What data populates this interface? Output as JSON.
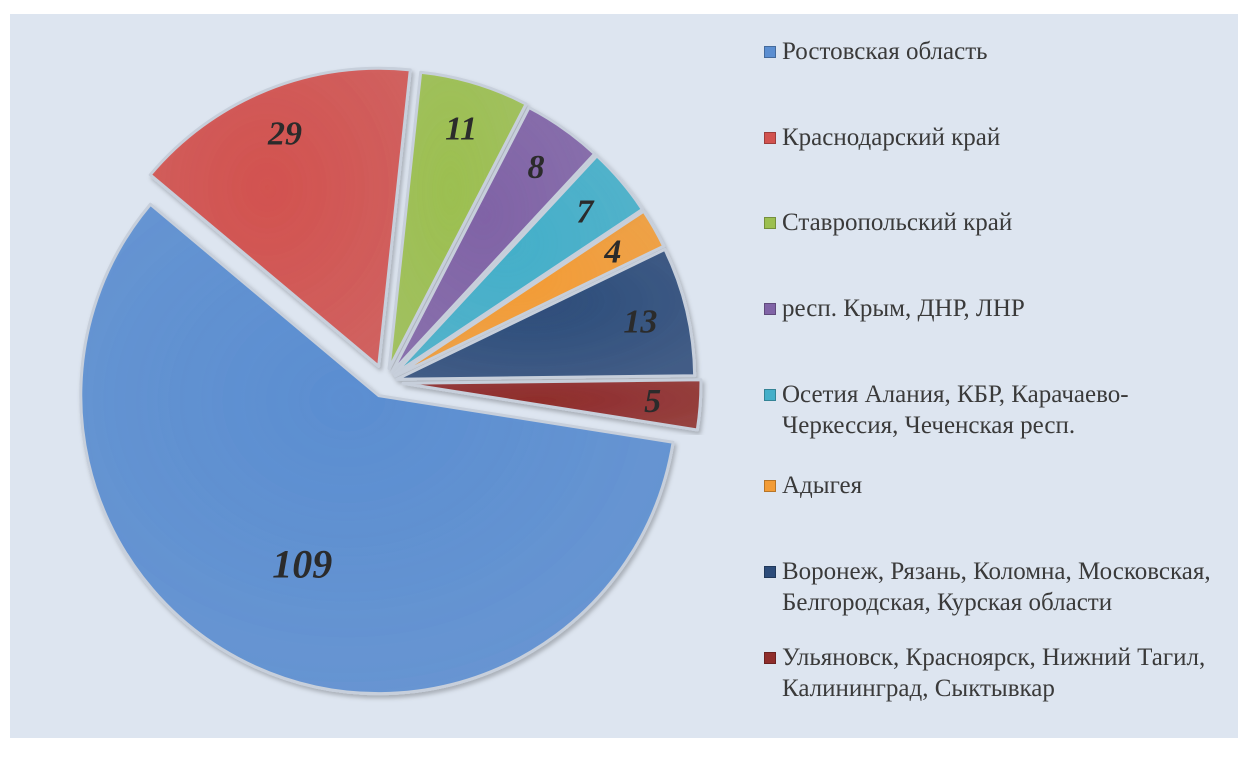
{
  "chart_data": {
    "type": "pie",
    "style": "exploded-3d",
    "legend_position": "right",
    "slices": [
      {
        "label": "Ростовская область",
        "value": 109,
        "color": "#5b8ed1"
      },
      {
        "label": "Краснодарский край",
        "value": 29,
        "color": "#d2524f"
      },
      {
        "label": "Ставропольский край",
        "value": 11,
        "color": "#9cbf50"
      },
      {
        "label": "респ. Крым, ДНР, ЛНР",
        "value": 8,
        "color": "#8063a6"
      },
      {
        "label": "Осетия Алания, КБР, Карачаево-Черкессия, Чеченская респ.",
        "value": 7,
        "color": "#44afc9"
      },
      {
        "label": "Адыгея",
        "value": 4,
        "color": "#f39c36"
      },
      {
        "label": "Воронеж, Рязань, Коломна, Московская, Белгородская, Курская области",
        "value": 13,
        "color": "#2d4c7a"
      },
      {
        "label": "Ульяновск, Красноярск, Нижний Тагил, Калининград, Сыктывкар",
        "value": 5,
        "color": "#8f2d2b"
      }
    ]
  }
}
